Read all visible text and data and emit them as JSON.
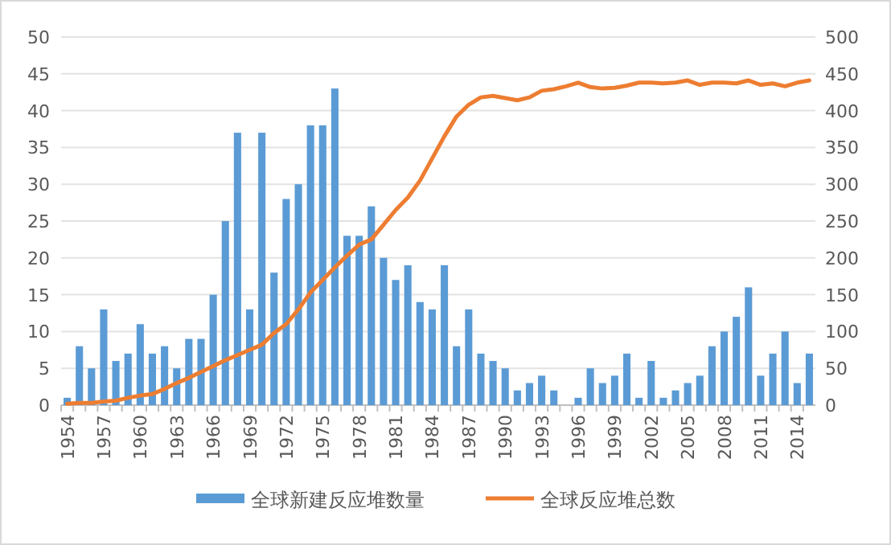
{
  "chart_data": {
    "type": "bar",
    "categories": [
      "1954",
      null,
      null,
      "1957",
      null,
      null,
      "1960",
      null,
      null,
      "1963",
      null,
      null,
      "1966",
      null,
      null,
      "1969",
      null,
      null,
      "1972",
      null,
      null,
      "1975",
      null,
      null,
      "1978",
      null,
      null,
      "1981",
      null,
      null,
      "1984",
      null,
      null,
      "1987",
      null,
      null,
      "1990",
      null,
      null,
      "1993",
      null,
      null,
      "1996",
      null,
      null,
      "1999",
      null,
      null,
      "2002",
      null,
      null,
      "2005",
      null,
      null,
      "2008",
      null,
      null,
      "2011",
      null,
      null,
      "2014",
      null
    ],
    "series": [
      {
        "name": "全球新建反应堆数量",
        "color": "#5b9bd5",
        "values": [
          1,
          8,
          5,
          13,
          6,
          7,
          11,
          7,
          8,
          5,
          9,
          9,
          15,
          25,
          37,
          13,
          37,
          18,
          28,
          30,
          38,
          38,
          43,
          23,
          23,
          27,
          20,
          17,
          19,
          14,
          13,
          19,
          8,
          13,
          7,
          6,
          5,
          2,
          3,
          4,
          2,
          0,
          1,
          5,
          3,
          4,
          7,
          1,
          6,
          1,
          2,
          3,
          4,
          8,
          10,
          12,
          16,
          4,
          7,
          10,
          3,
          7
        ]
      },
      {
        "name": "全球反应堆总数",
        "type": "line",
        "axis": "y2",
        "color": "#ed7d31",
        "values": [
          2,
          3,
          3,
          5,
          6,
          10,
          13,
          15,
          22,
          30,
          37,
          45,
          53,
          61,
          68,
          75,
          82,
          98,
          110,
          130,
          153,
          170,
          187,
          203,
          218,
          225,
          245,
          265,
          282,
          305,
          335,
          365,
          392,
          408,
          418,
          420,
          417,
          414,
          418,
          427,
          429,
          433,
          438,
          432,
          430,
          431,
          434,
          438,
          438,
          437,
          438,
          441,
          435,
          438,
          438,
          437,
          441,
          435,
          437,
          433,
          438,
          441
        ]
      }
    ],
    "ylim": [
      0,
      50
    ],
    "yticks": [
      0,
      5,
      10,
      15,
      20,
      25,
      30,
      35,
      40,
      45,
      50
    ],
    "y2lim": [
      0,
      500
    ],
    "y2ticks": [
      0,
      50,
      100,
      150,
      200,
      250,
      300,
      350,
      400,
      450,
      500
    ],
    "grid": "y",
    "legend": "bottom",
    "marker": "none"
  }
}
